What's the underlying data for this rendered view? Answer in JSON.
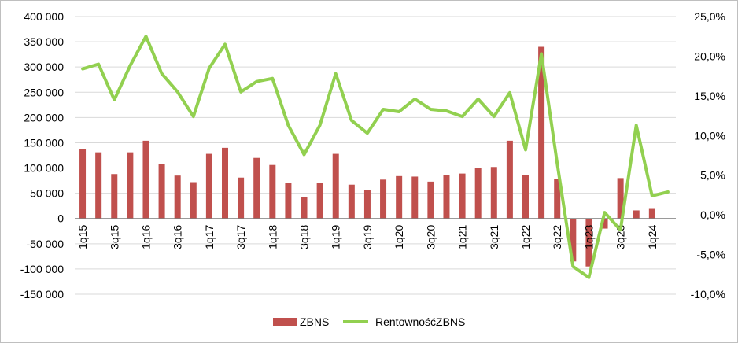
{
  "chart_data": {
    "type": "bar+line",
    "categories": [
      "1q15",
      "2q15",
      "3q15",
      "4q15",
      "1q16",
      "2q16",
      "3q16",
      "4q16",
      "1q17",
      "2q17",
      "3q17",
      "4q17",
      "1q18",
      "2q18",
      "3q18",
      "4q18",
      "1q19",
      "2q19",
      "3q19",
      "4q19",
      "1q20",
      "2q20",
      "3q20",
      "4q20",
      "1q21",
      "2q21",
      "3q21",
      "4q21",
      "1q22",
      "2q22",
      "3q22",
      "4q22",
      "1q23",
      "2q23",
      "3q23",
      "4q23",
      "1q24",
      "2q24"
    ],
    "x_tick_labels": [
      "1q15",
      "3q15",
      "1q16",
      "3q16",
      "1q17",
      "3q17",
      "1q18",
      "3q18",
      "1q19",
      "3q19",
      "1q20",
      "3q20",
      "1q21",
      "3q21",
      "1q22",
      "3q22",
      "1q23",
      "3q23",
      "1q24"
    ],
    "series": [
      {
        "name": "ZBNS",
        "type": "bar",
        "axis": "left",
        "color": "#c0504d",
        "values": [
          137000,
          131000,
          88000,
          131000,
          154000,
          108000,
          85000,
          72000,
          128000,
          140000,
          81000,
          120000,
          106000,
          70000,
          42000,
          70000,
          128000,
          67000,
          56000,
          77000,
          84000,
          83000,
          73000,
          86000,
          89000,
          100000,
          102000,
          154000,
          86000,
          340000,
          78000,
          -85000,
          -95000,
          -20000,
          80000,
          16000,
          19000,
          0
        ]
      },
      {
        "name": "RentownośćZBNS",
        "type": "line",
        "axis": "right",
        "color": "#92d050",
        "values": [
          18.4,
          19.0,
          14.5,
          18.8,
          22.5,
          17.8,
          15.5,
          12.4,
          18.5,
          21.5,
          15.5,
          16.8,
          17.2,
          11.3,
          7.6,
          11.3,
          17.8,
          11.9,
          10.3,
          13.3,
          13.0,
          14.6,
          13.3,
          13.1,
          12.4,
          14.6,
          12.4,
          15.4,
          8.2,
          20.3,
          6.5,
          -6.5,
          -7.9,
          0.3,
          -1.9,
          11.3,
          2.4,
          2.9
        ]
      }
    ],
    "left_axis": {
      "min": -150000,
      "max": 400000,
      "step": 50000,
      "tick_labels": [
        "400 000",
        "350 000",
        "300 000",
        "250 000",
        "200 000",
        "150 000",
        "100 000",
        "50 000",
        "0",
        "-50 000",
        "-100 000",
        "-150 000"
      ]
    },
    "right_axis": {
      "min": -10,
      "max": 25,
      "step": 5,
      "tick_labels": [
        "25,0%",
        "20,0%",
        "15,0%",
        "10,0%",
        "5,0%",
        "0,0%",
        "-5,0%",
        "-10,0%"
      ]
    },
    "legend": {
      "placement": "bottom",
      "bar_label": "ZBNS",
      "line_label": "RentownośćZBNS"
    },
    "grid": true
  }
}
